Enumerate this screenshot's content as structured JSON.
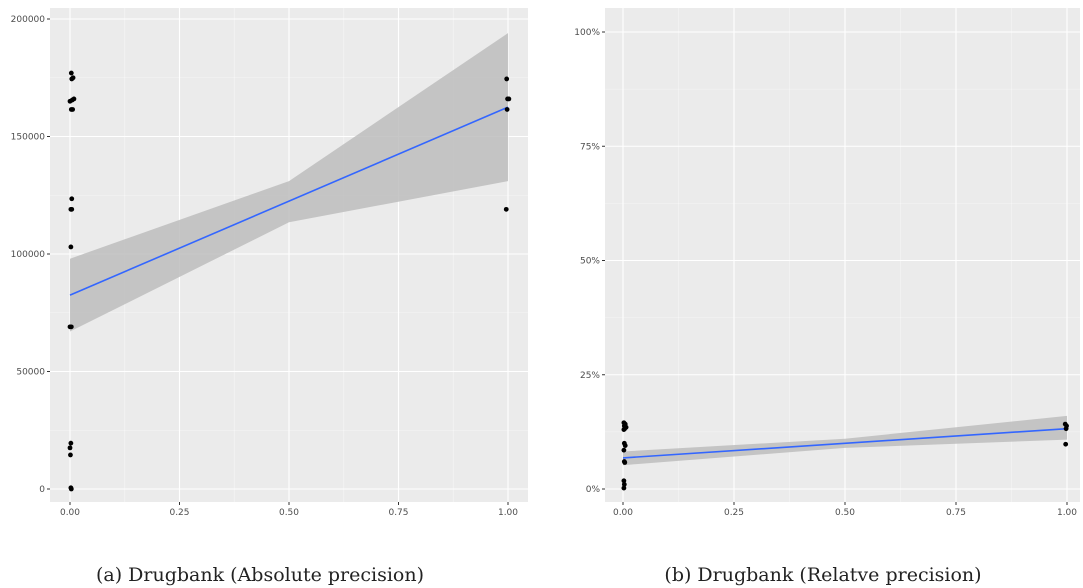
{
  "chart_data": [
    {
      "type": "scatter",
      "caption": "(a) Drugbank (Absolute precision)",
      "xlim": [
        0,
        1
      ],
      "ylim": [
        0,
        200000
      ],
      "x_ticks": [
        0,
        0.25,
        0.5,
        0.75,
        1
      ],
      "x_tick_labels": [
        "0.00",
        "0.25",
        "0.50",
        "0.75",
        "1.00"
      ],
      "y_ticks": [
        0,
        50000,
        100000,
        150000,
        200000
      ],
      "y_tick_labels": [
        "0",
        "50000",
        "100000",
        "150000",
        "200000"
      ],
      "grid": true,
      "points": [
        {
          "x": 0.003,
          "y": 177000
        },
        {
          "x": 0.007,
          "y": 175000
        },
        {
          "x": 0.004,
          "y": 174500
        },
        {
          "x": 0.009,
          "y": 166000
        },
        {
          "x": 0.005,
          "y": 165500
        },
        {
          "x": 0.0,
          "y": 165000
        },
        {
          "x": 0.003,
          "y": 161500
        },
        {
          "x": 0.006,
          "y": 161500
        },
        {
          "x": 0.004,
          "y": 123500
        },
        {
          "x": 0.002,
          "y": 119000
        },
        {
          "x": 0.004,
          "y": 119000
        },
        {
          "x": 0.002,
          "y": 103000
        },
        {
          "x": 0.0,
          "y": 69000
        },
        {
          "x": 0.003,
          "y": 69000
        },
        {
          "x": 0.002,
          "y": 19500
        },
        {
          "x": 0.0,
          "y": 17500
        },
        {
          "x": 0.001,
          "y": 14500
        },
        {
          "x": 0.002,
          "y": 500
        },
        {
          "x": 0.003,
          "y": 0
        },
        {
          "x": 0.997,
          "y": 174500
        },
        {
          "x": 0.999,
          "y": 166000
        },
        {
          "x": 1.002,
          "y": 166000
        },
        {
          "x": 0.998,
          "y": 161500
        },
        {
          "x": 0.996,
          "y": 119000
        }
      ],
      "fit_line": {
        "x": [
          0,
          1
        ],
        "y": [
          82500,
          162500
        ]
      },
      "confidence_band": {
        "x": [
          0,
          0.5,
          1
        ],
        "upper": [
          98000,
          131000,
          194000
        ],
        "lower": [
          67000,
          113500,
          131000
        ]
      },
      "colors": {
        "panel": "#ebebeb",
        "grid": "#ffffff",
        "line": "#3366ff",
        "band": "#bdbdbd",
        "point": "#000000"
      }
    },
    {
      "type": "scatter",
      "caption": "(b) Drugbank (Relatve precision)",
      "xlim": [
        0,
        1
      ],
      "ylim": [
        0,
        1
      ],
      "x_ticks": [
        0,
        0.25,
        0.5,
        0.75,
        1
      ],
      "x_tick_labels": [
        "0.00",
        "0.25",
        "0.50",
        "0.75",
        "1.00"
      ],
      "y_ticks": [
        0,
        0.25,
        0.5,
        0.75,
        1
      ],
      "y_tick_labels": [
        "0%",
        "25%",
        "50%",
        "75%",
        "100%"
      ],
      "grid": true,
      "points": [
        {
          "x": 0.002,
          "y": 0.145
        },
        {
          "x": 0.005,
          "y": 0.142
        },
        {
          "x": 0.003,
          "y": 0.138
        },
        {
          "x": 0.007,
          "y": 0.135
        },
        {
          "x": 0.004,
          "y": 0.132
        },
        {
          "x": 0.002,
          "y": 0.13
        },
        {
          "x": 0.003,
          "y": 0.1
        },
        {
          "x": 0.005,
          "y": 0.095
        },
        {
          "x": 0.002,
          "y": 0.085
        },
        {
          "x": 0.003,
          "y": 0.06
        },
        {
          "x": 0.004,
          "y": 0.058
        },
        {
          "x": 0.002,
          "y": 0.018
        },
        {
          "x": 0.003,
          "y": 0.01
        },
        {
          "x": 0.002,
          "y": 0.002
        },
        {
          "x": 0.996,
          "y": 0.142
        },
        {
          "x": 0.999,
          "y": 0.138
        },
        {
          "x": 0.998,
          "y": 0.132
        },
        {
          "x": 0.997,
          "y": 0.098
        }
      ],
      "fit_line": {
        "x": [
          0,
          1
        ],
        "y": [
          0.068,
          0.132
        ]
      },
      "confidence_band": {
        "x": [
          0,
          0.5,
          1
        ],
        "upper": [
          0.082,
          0.11,
          0.16
        ],
        "lower": [
          0.052,
          0.09,
          0.108
        ]
      },
      "colors": {
        "panel": "#ebebeb",
        "grid": "#ffffff",
        "line": "#3366ff",
        "band": "#bdbdbd",
        "point": "#000000"
      }
    }
  ]
}
